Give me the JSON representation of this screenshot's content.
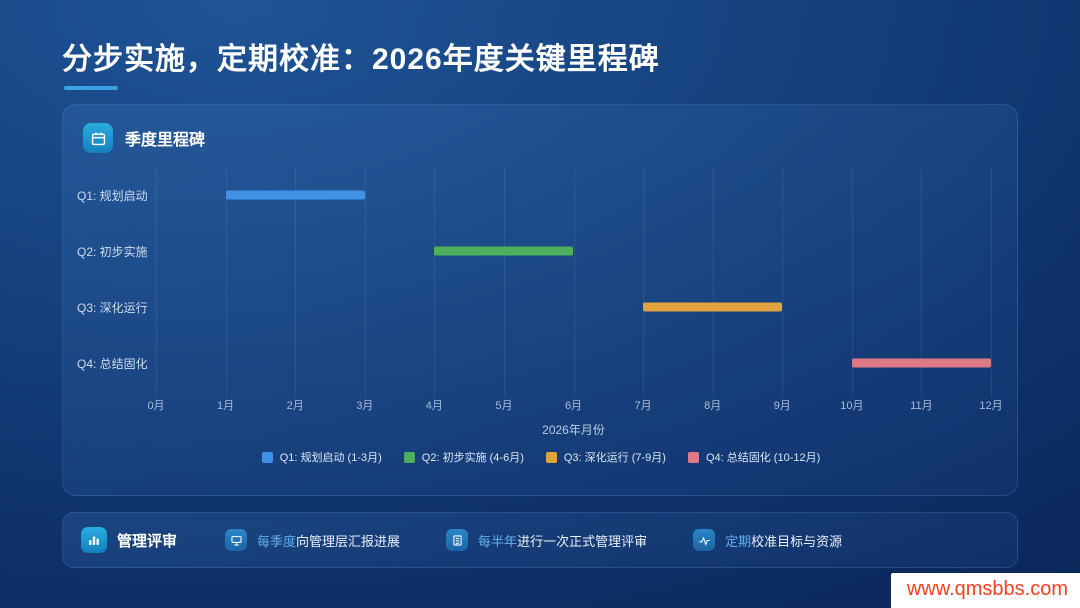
{
  "slide": {
    "title": "分步实施，定期校准：2026年度关键里程碑",
    "watermark": "www.qmsbbs.com",
    "colors": {
      "accent": "#3fa0e8",
      "highlight_text": "#5fb0f0",
      "watermark_red": "#f3411f"
    }
  },
  "milestone_panel": {
    "header": "季度里程碑"
  },
  "chart_data": {
    "type": "bar",
    "subtype": "gantt",
    "title": "季度里程碑",
    "xlabel": "2026年月份",
    "xlim": [
      0,
      12
    ],
    "x_ticks": [
      "0月",
      "1月",
      "2月",
      "3月",
      "4月",
      "5月",
      "6月",
      "7月",
      "8月",
      "9月",
      "10月",
      "11月",
      "12月"
    ],
    "grid": true,
    "legend_position": "bottom",
    "rows": [
      {
        "label": "Q1: 规划启动",
        "start": 1,
        "end": 3,
        "color": "#3f92e8",
        "legend": "Q1: 规划启动 (1-3月)"
      },
      {
        "label": "Q2: 初步实施",
        "start": 4,
        "end": 6,
        "color": "#4cb05e",
        "legend": "Q2: 初步实施 (4-6月)"
      },
      {
        "label": "Q3: 深化运行",
        "start": 7,
        "end": 9,
        "color": "#e2a33e",
        "legend": "Q3: 深化运行 (7-9月)"
      },
      {
        "label": "Q4: 总结固化",
        "start": 10,
        "end": 12,
        "color": "#de7a85",
        "legend": "Q4: 总结固化 (10-12月)"
      }
    ]
  },
  "review_panel": {
    "title": "管理评审",
    "items": [
      {
        "icon": "presentation-icon",
        "highlight": "每季度",
        "text": "向管理层汇报进展"
      },
      {
        "icon": "document-check-icon",
        "highlight": "每半年",
        "text": "进行一次正式管理评审"
      },
      {
        "icon": "calibrate-icon",
        "highlight": "定期",
        "text": "校准目标与资源"
      }
    ]
  }
}
